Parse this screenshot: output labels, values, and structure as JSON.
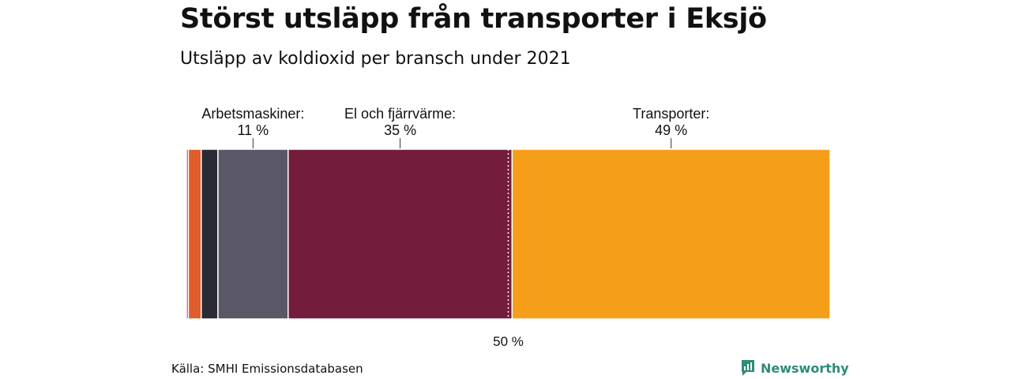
{
  "header": {
    "title": "Störst utsläpp från transporter i Eksjö",
    "subtitle": "Utsläpp av koldioxid per bransch under 2021"
  },
  "footer": {
    "source": "Källa: SMHI Emissionsdatabasen",
    "brand": "Newsworthy",
    "brand_color": "#2e8b7a"
  },
  "chart_data": {
    "type": "bar",
    "orientation": "stacked-100",
    "total": 100,
    "segments": [
      {
        "value": 0.3,
        "color": "#a3192b",
        "label": "",
        "percent_label": ""
      },
      {
        "value": 2.0,
        "color": "#e05d2c",
        "label": "",
        "percent_label": ""
      },
      {
        "value": 2.6,
        "color": "#2b2b35",
        "label": "",
        "percent_label": ""
      },
      {
        "value": 10.9,
        "color": "#5a5866",
        "label": "Arbetsmaskiner:",
        "percent_label": "11 %"
      },
      {
        "value": 34.8,
        "color": "#731c3c",
        "label": "El och fjärrvärme:",
        "percent_label": "35 %"
      },
      {
        "value": 49.4,
        "color": "#f59e1a",
        "label": "Transporter:",
        "percent_label": "49 %"
      }
    ],
    "reference_line": {
      "value": 50,
      "label": "50 %"
    }
  }
}
